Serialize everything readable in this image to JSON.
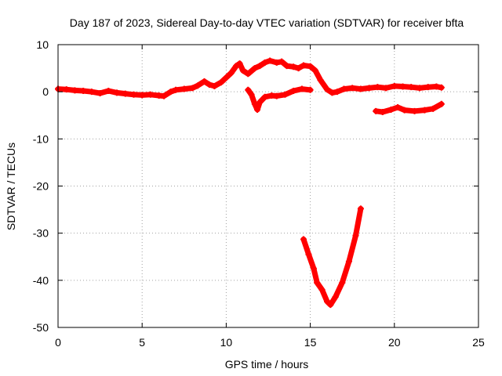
{
  "chart_data": {
    "type": "scatter",
    "title": "Day 187 of 2023, Sidereal Day-to-day VTEC variation (SDTVAR) for receiver bfta",
    "xlabel": "GPS time / hours",
    "ylabel": "SDTVAR / TECUs",
    "xlim": [
      0,
      25
    ],
    "ylim": [
      -50,
      10
    ],
    "xticks": [
      0,
      5,
      10,
      15,
      20,
      25
    ],
    "yticks": [
      10,
      0,
      -10,
      -20,
      -30,
      -40,
      -50
    ],
    "grid": true,
    "legend": "none",
    "series_color": "#ff0000",
    "series": [
      {
        "name": "main",
        "points": [
          [
            0,
            0.6
          ],
          [
            0.5,
            0.5
          ],
          [
            1,
            0.3
          ],
          [
            1.5,
            0.2
          ],
          [
            2,
            0
          ],
          [
            2.5,
            -0.3
          ],
          [
            3,
            0.2
          ],
          [
            3.5,
            -0.2
          ],
          [
            4,
            -0.4
          ],
          [
            4.5,
            -0.6
          ],
          [
            5,
            -0.7
          ],
          [
            5.5,
            -0.6
          ],
          [
            6,
            -0.8
          ],
          [
            6.3,
            -0.9
          ],
          [
            6.7,
            0
          ],
          [
            7,
            0.4
          ],
          [
            7.5,
            0.6
          ],
          [
            8,
            0.8
          ],
          [
            8.3,
            1.3
          ],
          [
            8.7,
            2.2
          ],
          [
            9,
            1.5
          ],
          [
            9.3,
            1.2
          ],
          [
            9.7,
            2
          ],
          [
            10,
            3
          ],
          [
            10.3,
            4
          ],
          [
            10.6,
            5.5
          ],
          [
            10.8,
            6
          ],
          [
            11,
            4.5
          ],
          [
            11.3,
            3.8
          ],
          [
            11.7,
            5
          ],
          [
            12,
            5.5
          ],
          [
            12.3,
            6.2
          ],
          [
            12.6,
            6.6
          ],
          [
            13,
            6.2
          ],
          [
            13.3,
            6.4
          ],
          [
            13.6,
            5.5
          ],
          [
            14,
            5.3
          ],
          [
            14.3,
            5
          ],
          [
            14.6,
            5.6
          ],
          [
            15,
            5.4
          ],
          [
            15.3,
            4.5
          ],
          [
            15.6,
            2.5
          ],
          [
            16,
            0.5
          ],
          [
            16.3,
            -0.2
          ],
          [
            16.6,
            0
          ],
          [
            17,
            0.6
          ],
          [
            17.5,
            0.8
          ],
          [
            18,
            0.6
          ],
          [
            18.5,
            0.8
          ],
          [
            19,
            1
          ],
          [
            19.5,
            0.8
          ],
          [
            20,
            1.2
          ],
          [
            20.5,
            1.1
          ],
          [
            21,
            1
          ],
          [
            21.5,
            0.8
          ],
          [
            22,
            1
          ],
          [
            22.5,
            1.1
          ],
          [
            22.8,
            0.9
          ]
        ]
      },
      {
        "name": "mid-branch",
        "points": [
          [
            11.3,
            0.4
          ],
          [
            11.5,
            -0.6
          ],
          [
            11.7,
            -2.6
          ],
          [
            11.85,
            -3.8
          ],
          [
            12,
            -2.2
          ],
          [
            12.3,
            -1.1
          ],
          [
            12.7,
            -0.8
          ],
          [
            13,
            -0.9
          ],
          [
            13.5,
            -0.6
          ],
          [
            14,
            0.2
          ],
          [
            14.5,
            0.6
          ],
          [
            15,
            0.4
          ]
        ]
      },
      {
        "name": "evening-branch",
        "points": [
          [
            18.9,
            -4.1
          ],
          [
            19.3,
            -4.3
          ],
          [
            19.8,
            -3.8
          ],
          [
            20.2,
            -3.3
          ],
          [
            20.6,
            -3.9
          ],
          [
            21.2,
            -4.1
          ],
          [
            21.8,
            -3.9
          ],
          [
            22.3,
            -3.6
          ],
          [
            22.8,
            -2.6
          ]
        ]
      },
      {
        "name": "v-branch",
        "points": [
          [
            14.6,
            -31.3
          ],
          [
            14.9,
            -34.5
          ],
          [
            15.2,
            -37.5
          ],
          [
            15.4,
            -40.5
          ],
          [
            15.7,
            -42
          ],
          [
            16,
            -44.5
          ],
          [
            16.2,
            -45.2
          ],
          [
            16.5,
            -43.5
          ],
          [
            16.9,
            -40.5
          ],
          [
            17.3,
            -36
          ],
          [
            17.7,
            -30.5
          ],
          [
            18,
            -24.8
          ]
        ]
      }
    ]
  }
}
